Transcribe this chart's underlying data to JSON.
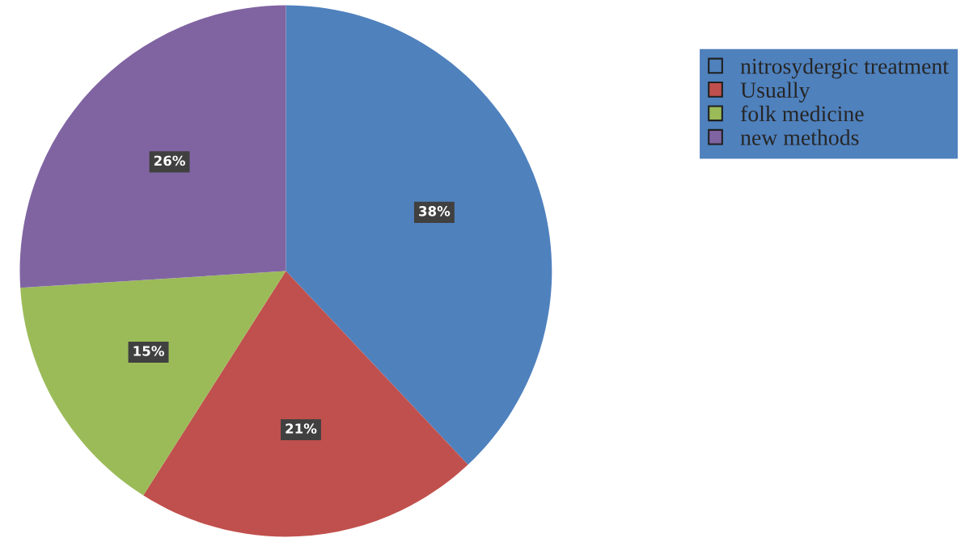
{
  "chart_data": {
    "type": "pie",
    "categories": [
      "nitrosydergic treatment",
      "Usually",
      "folk medicine",
      "new methods"
    ],
    "values": [
      38,
      21,
      15,
      26
    ],
    "value_labels": [
      "38%",
      "21%",
      "15%",
      "26%"
    ],
    "colors": [
      "#4f81bd",
      "#c0504d",
      "#9bbb59",
      "#8064a2"
    ],
    "legend": "top right"
  }
}
